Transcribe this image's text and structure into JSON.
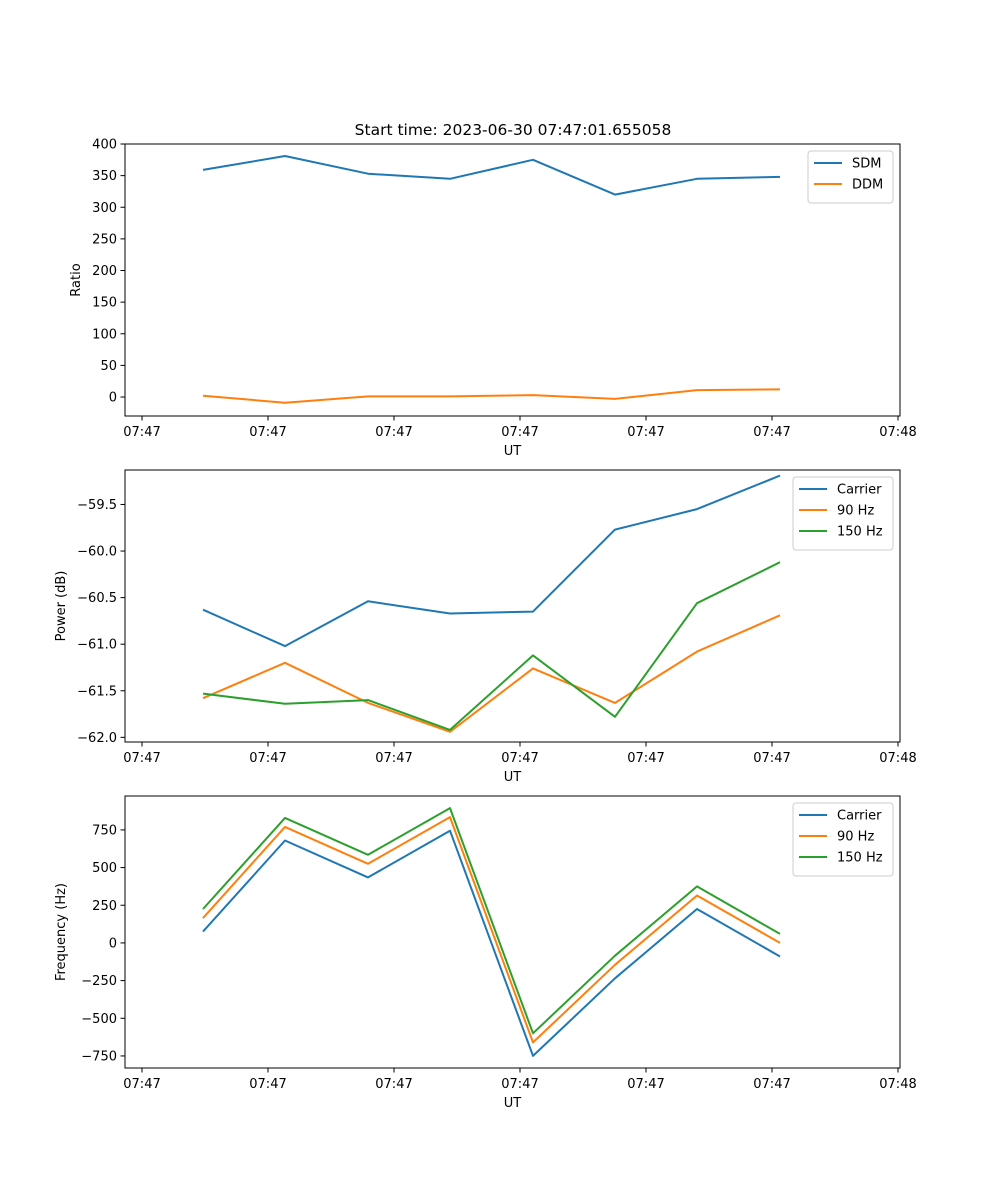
{
  "figure_title": "Start time: 2023-06-30 07:47:01.655058",
  "chart_data": [
    {
      "type": "line",
      "title": "Start time: 2023-06-30 07:47:01.655058",
      "xlabel": "UT",
      "ylabel": "Ratio",
      "x_tick_labels": [
        "07:47",
        "07:47",
        "07:47",
        "07:47",
        "07:47",
        "07:47",
        "07:48"
      ],
      "x_samples": 8,
      "y_ticks": [
        0,
        50,
        100,
        150,
        200,
        250,
        300,
        350,
        400
      ],
      "ylim": [
        -30,
        400
      ],
      "legend_position": "top-right",
      "series": [
        {
          "name": "SDM",
          "color": "#1f77b4",
          "values": [
            359,
            381,
            353,
            345,
            375,
            320,
            345,
            348
          ]
        },
        {
          "name": "DDM",
          "color": "#ff7f0e",
          "values": [
            2,
            -9,
            1,
            1,
            3,
            -3,
            11,
            12
          ]
        }
      ]
    },
    {
      "type": "line",
      "xlabel": "UT",
      "ylabel": "Power (dB)",
      "x_tick_labels": [
        "07:47",
        "07:47",
        "07:47",
        "07:47",
        "07:47",
        "07:47",
        "07:48"
      ],
      "x_samples": 8,
      "y_ticks": [
        -62.0,
        -61.5,
        -61.0,
        -60.5,
        -60.0,
        -59.5
      ],
      "y_tick_labels": [
        "−62.0",
        "−61.5",
        "−61.0",
        "−60.5",
        "−60.0",
        "−59.5"
      ],
      "ylim": [
        -62.05,
        -59.13
      ],
      "legend_position": "top-right",
      "series": [
        {
          "name": "Carrier",
          "color": "#1f77b4",
          "values": [
            -60.63,
            -61.02,
            -60.54,
            -60.67,
            -60.65,
            -59.77,
            -59.55,
            -59.19
          ]
        },
        {
          "name": "90 Hz",
          "color": "#ff7f0e",
          "values": [
            -61.58,
            -61.2,
            -61.63,
            -61.94,
            -61.26,
            -61.63,
            -61.08,
            -60.69
          ]
        },
        {
          "name": "150 Hz",
          "color": "#2ca02c",
          "values": [
            -61.53,
            -61.64,
            -61.6,
            -61.92,
            -61.12,
            -61.78,
            -60.56,
            -60.12
          ]
        }
      ]
    },
    {
      "type": "line",
      "xlabel": "UT",
      "ylabel": "Frequency (Hz)",
      "x_tick_labels": [
        "07:47",
        "07:47",
        "07:47",
        "07:47",
        "07:47",
        "07:47",
        "07:48"
      ],
      "x_samples": 8,
      "y_ticks": [
        -750,
        -500,
        -250,
        0,
        250,
        500,
        750
      ],
      "y_tick_labels": [
        "−750",
        "−500",
        "−250",
        "0",
        "250",
        "500",
        "750"
      ],
      "ylim": [
        -830,
        975
      ],
      "legend_position": "top-right",
      "series": [
        {
          "name": "Carrier",
          "color": "#1f77b4",
          "values": [
            75,
            680,
            435,
            745,
            -750,
            -235,
            225,
            -90
          ]
        },
        {
          "name": "90 Hz",
          "color": "#ff7f0e",
          "values": [
            165,
            770,
            525,
            835,
            -660,
            -145,
            315,
            0
          ]
        },
        {
          "name": "150 Hz",
          "color": "#2ca02c",
          "values": [
            225,
            830,
            585,
            895,
            -600,
            -85,
            375,
            60
          ]
        }
      ]
    }
  ]
}
